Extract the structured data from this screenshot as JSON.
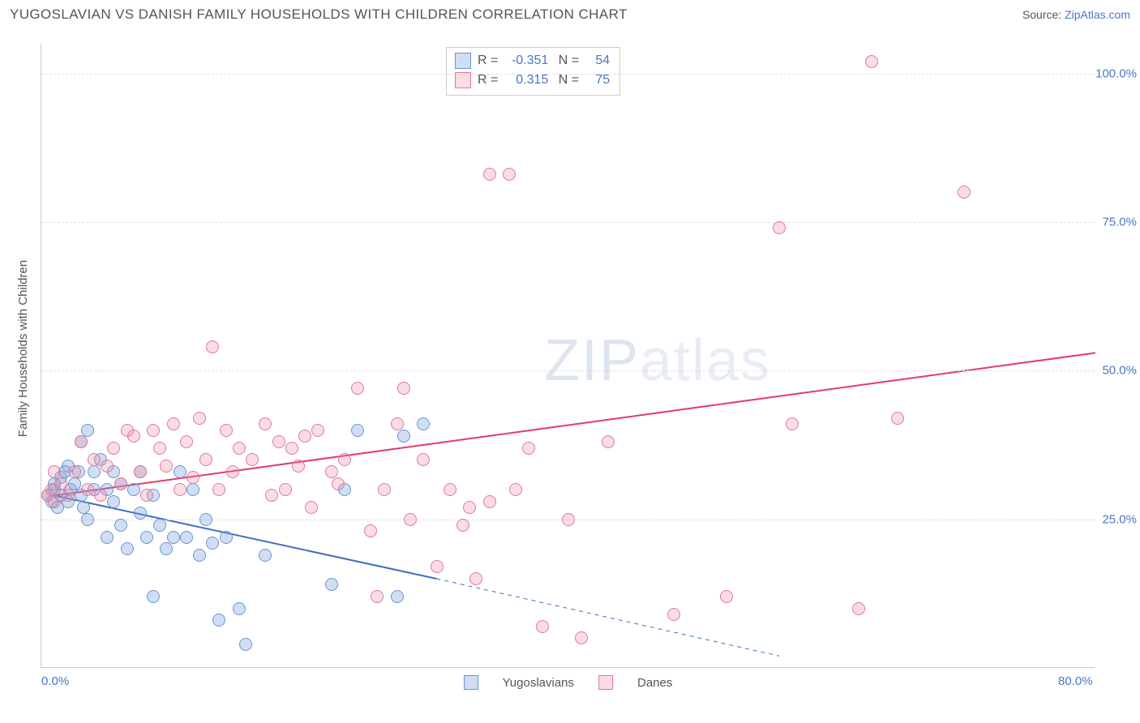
{
  "title": "YUGOSLAVIAN VS DANISH FAMILY HOUSEHOLDS WITH CHILDREN CORRELATION CHART",
  "source_label": "Source:",
  "source_name": "ZipAtlas.com",
  "ylabel": "Family Households with Children",
  "watermark_bold": "ZIP",
  "watermark_light": "atlas",
  "chart": {
    "type": "scatter",
    "background_color": "#ffffff",
    "grid_color": "#dddddd",
    "axis_color": "#cccccc",
    "tick_color": "#4a76c7",
    "label_color": "#555555",
    "xlim": [
      0,
      80
    ],
    "ylim": [
      0,
      105
    ],
    "xticks": [
      {
        "v": 0,
        "label": "0.0%"
      },
      {
        "v": 80,
        "label": "80.0%"
      }
    ],
    "yticks": [
      {
        "v": 25,
        "label": "25.0%"
      },
      {
        "v": 50,
        "label": "50.0%"
      },
      {
        "v": 75,
        "label": "75.0%"
      },
      {
        "v": 100,
        "label": "100.0%"
      }
    ],
    "marker_radius": 8,
    "marker_border_width": 1.5,
    "series": [
      {
        "name": "Yugoslavians",
        "fill": "rgba(120,160,220,0.35)",
        "stroke": "#6a95d0",
        "R": "-0.351",
        "N": "54",
        "trend": {
          "x1": 1,
          "y1": 29,
          "x2": 30,
          "y2": 15,
          "x2_ext": 56,
          "y2_ext": 2,
          "color": "#3d6fc0",
          "width": 2
        },
        "points": [
          [
            0.5,
            29
          ],
          [
            0.8,
            28
          ],
          [
            1,
            30
          ],
          [
            1,
            31
          ],
          [
            1.2,
            27
          ],
          [
            1.5,
            32
          ],
          [
            1.5,
            29
          ],
          [
            1.8,
            33
          ],
          [
            2,
            28
          ],
          [
            2,
            34
          ],
          [
            2.2,
            30
          ],
          [
            2.5,
            31
          ],
          [
            2.8,
            33
          ],
          [
            3,
            29
          ],
          [
            3,
            38
          ],
          [
            3.2,
            27
          ],
          [
            3.5,
            40
          ],
          [
            3.5,
            25
          ],
          [
            4,
            30
          ],
          [
            4,
            33
          ],
          [
            4.5,
            35
          ],
          [
            5,
            30
          ],
          [
            5,
            22
          ],
          [
            5.5,
            28
          ],
          [
            5.5,
            33
          ],
          [
            6,
            24
          ],
          [
            6,
            31
          ],
          [
            6.5,
            20
          ],
          [
            7,
            30
          ],
          [
            7.5,
            26
          ],
          [
            7.5,
            33
          ],
          [
            8,
            22
          ],
          [
            8.5,
            29
          ],
          [
            8.5,
            12
          ],
          [
            9,
            24
          ],
          [
            9.5,
            20
          ],
          [
            10,
            22
          ],
          [
            10.5,
            33
          ],
          [
            11,
            22
          ],
          [
            11.5,
            30
          ],
          [
            12,
            19
          ],
          [
            12.5,
            25
          ],
          [
            13,
            21
          ],
          [
            13.5,
            8
          ],
          [
            14,
            22
          ],
          [
            15,
            10
          ],
          [
            15.5,
            4
          ],
          [
            17,
            19
          ],
          [
            22,
            14
          ],
          [
            23,
            30
          ],
          [
            24,
            40
          ],
          [
            27,
            12
          ],
          [
            27.5,
            39
          ],
          [
            29,
            41
          ]
        ]
      },
      {
        "name": "Danes",
        "fill": "rgba(235,140,165,0.30)",
        "stroke": "#e07a96",
        "R": "0.315",
        "N": "75",
        "trend": {
          "x1": 1,
          "y1": 29,
          "x2": 80,
          "y2": 53,
          "color": "#e23a6e",
          "width": 2
        },
        "points": [
          [
            0.5,
            29
          ],
          [
            0.8,
            30
          ],
          [
            1,
            28
          ],
          [
            1,
            33
          ],
          [
            1.5,
            31
          ],
          [
            2,
            29
          ],
          [
            2.5,
            33
          ],
          [
            3,
            38
          ],
          [
            3.5,
            30
          ],
          [
            4,
            35
          ],
          [
            4.5,
            29
          ],
          [
            5,
            34
          ],
          [
            5.5,
            37
          ],
          [
            6,
            31
          ],
          [
            6.5,
            40
          ],
          [
            7,
            39
          ],
          [
            7.5,
            33
          ],
          [
            8,
            29
          ],
          [
            8.5,
            40
          ],
          [
            9,
            37
          ],
          [
            9.5,
            34
          ],
          [
            10,
            41
          ],
          [
            10.5,
            30
          ],
          [
            11,
            38
          ],
          [
            11.5,
            32
          ],
          [
            12,
            42
          ],
          [
            12.5,
            35
          ],
          [
            13,
            54
          ],
          [
            13.5,
            30
          ],
          [
            14,
            40
          ],
          [
            14.5,
            33
          ],
          [
            15,
            37
          ],
          [
            16,
            35
          ],
          [
            17,
            41
          ],
          [
            17.5,
            29
          ],
          [
            18,
            38
          ],
          [
            18.5,
            30
          ],
          [
            19,
            37
          ],
          [
            19.5,
            34
          ],
          [
            20,
            39
          ],
          [
            20.5,
            27
          ],
          [
            21,
            40
          ],
          [
            22,
            33
          ],
          [
            22.5,
            31
          ],
          [
            23,
            35
          ],
          [
            24,
            47
          ],
          [
            25,
            23
          ],
          [
            25.5,
            12
          ],
          [
            26,
            30
          ],
          [
            27,
            41
          ],
          [
            27.5,
            47
          ],
          [
            28,
            25
          ],
          [
            29,
            35
          ],
          [
            30,
            17
          ],
          [
            31,
            30
          ],
          [
            32,
            24
          ],
          [
            32.5,
            27
          ],
          [
            33,
            15
          ],
          [
            34,
            28
          ],
          [
            34,
            83
          ],
          [
            35.5,
            83
          ],
          [
            36,
            30
          ],
          [
            37,
            37
          ],
          [
            38,
            7
          ],
          [
            40,
            25
          ],
          [
            41,
            5
          ],
          [
            43,
            38
          ],
          [
            48,
            9
          ],
          [
            52,
            12
          ],
          [
            56,
            74
          ],
          [
            57,
            41
          ],
          [
            62,
            10
          ],
          [
            63,
            102
          ],
          [
            65,
            42
          ],
          [
            70,
            80
          ]
        ]
      }
    ]
  }
}
